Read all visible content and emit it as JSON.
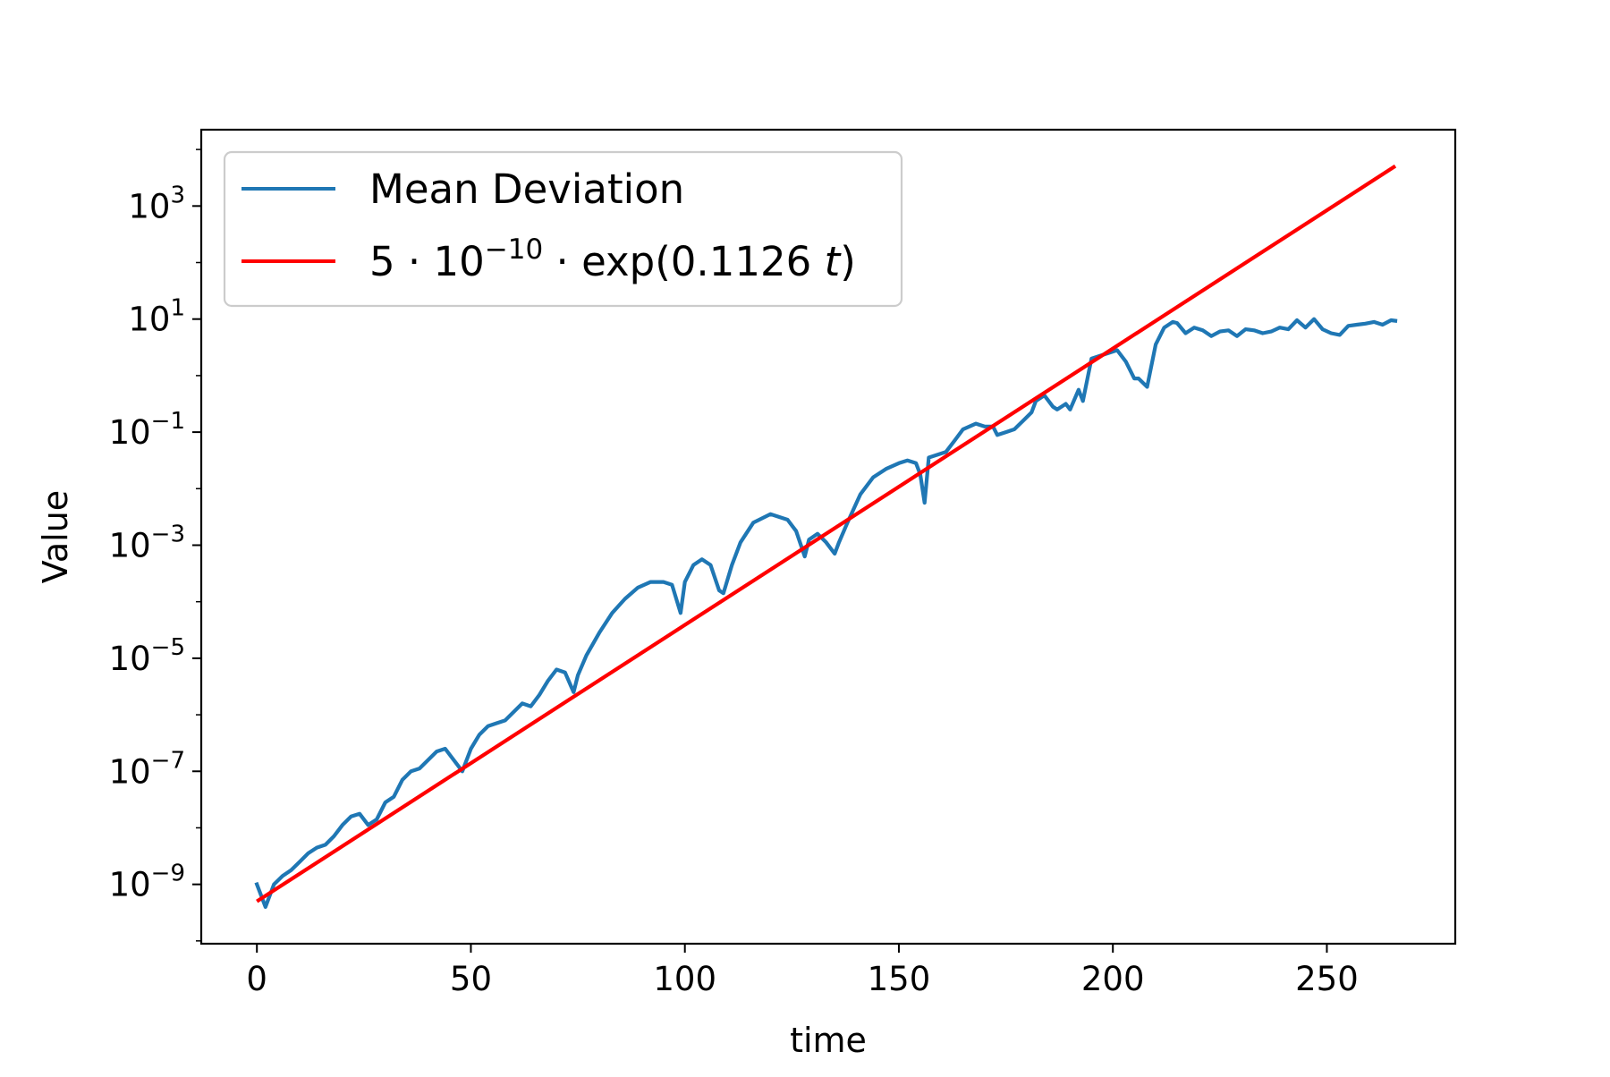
{
  "chart_data": {
    "type": "line",
    "title": "",
    "xlabel": "time",
    "ylabel": "Value",
    "x_scale": "linear",
    "y_scale": "log",
    "xlim": [
      -13,
      280
    ],
    "ylim_log10": [
      -10.05,
      4.35
    ],
    "xticks": [
      0,
      50,
      100,
      150,
      200,
      250
    ],
    "xtick_labels": [
      "0",
      "50",
      "100",
      "150",
      "200",
      "250"
    ],
    "yticks_log10": [
      -9,
      -7,
      -5,
      -3,
      -1,
      1,
      3
    ],
    "ytick_labels": [
      {
        "base": "10",
        "exp": "−9"
      },
      {
        "base": "10",
        "exp": "−7"
      },
      {
        "base": "10",
        "exp": "−5"
      },
      {
        "base": "10",
        "exp": "−3"
      },
      {
        "base": "10",
        "exp": "−1"
      },
      {
        "base": "10",
        "exp": "1"
      },
      {
        "base": "10",
        "exp": "3"
      }
    ],
    "grid": false,
    "legend_position": "upper-left",
    "series": [
      {
        "name": "Mean Deviation",
        "color": "#1f77b4",
        "x": [
          0,
          2,
          4,
          6,
          8,
          10,
          12,
          14,
          16,
          18,
          20,
          22,
          24,
          26,
          28,
          30,
          32,
          34,
          36,
          38,
          40,
          42,
          44,
          46,
          48,
          50,
          52,
          54,
          56,
          58,
          60,
          62,
          64,
          66,
          68,
          70,
          72,
          74,
          75,
          77,
          80,
          83,
          86,
          89,
          92,
          95,
          97,
          99,
          100,
          102,
          104,
          106,
          108,
          109,
          111,
          113,
          116,
          120,
          124,
          126,
          128,
          129,
          131,
          133,
          135,
          136,
          138,
          141,
          144,
          147,
          150,
          152,
          154,
          155,
          156,
          157,
          159,
          161,
          163,
          165,
          168,
          170,
          172,
          173,
          175,
          177,
          179,
          181,
          182,
          184,
          186,
          187,
          189,
          190,
          192,
          193,
          195,
          197,
          199,
          201,
          203,
          205,
          206,
          208,
          210,
          212,
          214,
          215,
          217,
          219,
          221,
          223,
          225,
          227,
          229,
          231,
          233,
          235,
          237,
          239,
          241,
          243,
          245,
          247,
          249,
          251,
          253,
          255,
          257,
          259,
          261,
          263,
          265,
          266
        ],
        "y_log10": [
          -9.0,
          -9.4,
          -9.0,
          -8.85,
          -8.75,
          -8.6,
          -8.45,
          -8.35,
          -8.3,
          -8.15,
          -7.95,
          -7.8,
          -7.75,
          -7.95,
          -7.85,
          -7.55,
          -7.45,
          -7.15,
          -7.0,
          -6.95,
          -6.8,
          -6.65,
          -6.6,
          -6.8,
          -7.0,
          -6.6,
          -6.35,
          -6.2,
          -6.15,
          -6.1,
          -5.95,
          -5.8,
          -5.85,
          -5.65,
          -5.4,
          -5.2,
          -5.25,
          -5.6,
          -5.3,
          -4.95,
          -4.55,
          -4.2,
          -3.95,
          -3.75,
          -3.65,
          -3.65,
          -3.7,
          -4.2,
          -3.65,
          -3.35,
          -3.25,
          -3.35,
          -3.8,
          -3.85,
          -3.35,
          -2.95,
          -2.6,
          -2.45,
          -2.55,
          -2.75,
          -3.2,
          -2.9,
          -2.8,
          -2.95,
          -3.15,
          -2.95,
          -2.6,
          -2.1,
          -1.8,
          -1.65,
          -1.55,
          -1.5,
          -1.55,
          -1.75,
          -2.25,
          -1.45,
          -1.4,
          -1.35,
          -1.15,
          -0.95,
          -0.85,
          -0.9,
          -0.9,
          -1.05,
          -1.0,
          -0.95,
          -0.8,
          -0.65,
          -0.45,
          -0.35,
          -0.55,
          -0.6,
          -0.5,
          -0.6,
          -0.25,
          -0.45,
          0.3,
          0.35,
          0.4,
          0.45,
          0.25,
          -0.05,
          -0.05,
          -0.2,
          0.55,
          0.85,
          0.95,
          0.93,
          0.75,
          0.85,
          0.8,
          0.7,
          0.78,
          0.8,
          0.7,
          0.82,
          0.8,
          0.75,
          0.78,
          0.85,
          0.82,
          0.98,
          0.85,
          1.0,
          0.82,
          0.75,
          0.72,
          0.88,
          0.9,
          0.92,
          0.95,
          0.9,
          0.98,
          0.97
        ]
      },
      {
        "name": "5·10⁻¹⁰·exp(0.1126 t)",
        "color": "#ff0000",
        "formula": {
          "a": 5e-10,
          "b": 0.1126
        },
        "x_range": [
          0,
          266
        ]
      }
    ]
  },
  "legend": {
    "entries": [
      {
        "kind": "text",
        "text": "Mean Deviation"
      },
      {
        "kind": "formula",
        "prefix": "5 · 10",
        "exp": "−10",
        "middle": " · exp(0.1126 ",
        "var": "t",
        "suffix": ")"
      }
    ]
  }
}
